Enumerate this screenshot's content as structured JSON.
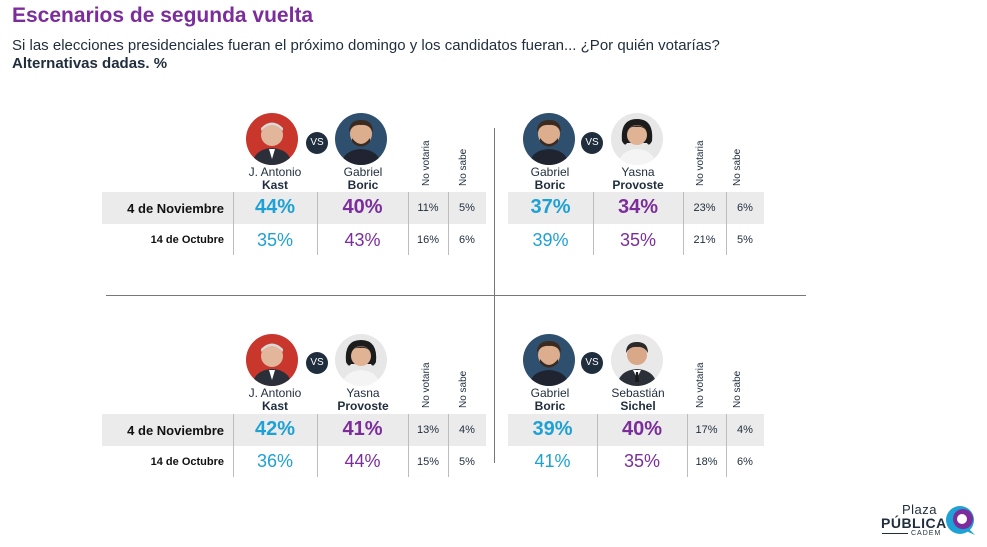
{
  "header": {
    "title": "Escenarios de segunda vuelta",
    "subtitle": "Si las elecciones presidenciales fueran el próximo domingo y los candidatos fueran... ¿Por quién votarías?",
    "subtitle2": "Alternativas dadas. %"
  },
  "labels": {
    "vs": "VS",
    "no_votaria": "No votaria",
    "no_sabe": "No sabe"
  },
  "row_labels": [
    "4 de Noviembre",
    "14 de Octubre"
  ],
  "colors": {
    "candidate_a": "#1ea1d4",
    "candidate_b": "#7b2d9c",
    "band": "#ebebeb",
    "text": "#1f2d3d"
  },
  "chart_data": [
    {
      "type": "table",
      "candidates": [
        {
          "first": "J. Antonio",
          "last": "Kast",
          "photo_icon": "kast-portrait-icon"
        },
        {
          "first": "Gabriel",
          "last": "Boric",
          "photo_icon": "boric-portrait-icon"
        }
      ],
      "columns": [
        "Kast",
        "Boric",
        "No votaria",
        "No sabe"
      ],
      "rows": [
        {
          "label": "4 de Noviembre",
          "values": [
            "44%",
            "40%",
            "11%",
            "5%"
          ]
        },
        {
          "label": "14 de Octubre",
          "values": [
            "35%",
            "43%",
            "16%",
            "6%"
          ]
        }
      ]
    },
    {
      "type": "table",
      "candidates": [
        {
          "first": "Gabriel",
          "last": "Boric",
          "photo_icon": "boric-portrait-icon"
        },
        {
          "first": "Yasna",
          "last": "Provoste",
          "photo_icon": "provoste-portrait-icon"
        }
      ],
      "columns": [
        "Boric",
        "Provoste",
        "No votaria",
        "No sabe"
      ],
      "rows": [
        {
          "label": "4 de Noviembre",
          "values": [
            "37%",
            "34%",
            "23%",
            "6%"
          ]
        },
        {
          "label": "14 de Octubre",
          "values": [
            "39%",
            "35%",
            "21%",
            "5%"
          ]
        }
      ]
    },
    {
      "type": "table",
      "candidates": [
        {
          "first": "J. Antonio",
          "last": "Kast",
          "photo_icon": "kast-portrait-icon"
        },
        {
          "first": "Yasna",
          "last": "Provoste",
          "photo_icon": "provoste-portrait-icon"
        }
      ],
      "columns": [
        "Kast",
        "Provoste",
        "No votaria",
        "No sabe"
      ],
      "rows": [
        {
          "label": "4 de Noviembre",
          "values": [
            "42%",
            "41%",
            "13%",
            "4%"
          ]
        },
        {
          "label": "14 de Octubre",
          "values": [
            "36%",
            "44%",
            "15%",
            "5%"
          ]
        }
      ]
    },
    {
      "type": "table",
      "candidates": [
        {
          "first": "Gabriel",
          "last": "Boric",
          "photo_icon": "boric-portrait-icon"
        },
        {
          "first": "Sebastián",
          "last": "Sichel",
          "photo_icon": "sichel-portrait-icon"
        }
      ],
      "columns": [
        "Boric",
        "Sichel",
        "No votaria",
        "No sabe"
      ],
      "rows": [
        {
          "label": "4 de Noviembre",
          "values": [
            "39%",
            "40%",
            "17%",
            "4%"
          ]
        },
        {
          "label": "14 de Octubre",
          "values": [
            "41%",
            "35%",
            "18%",
            "6%"
          ]
        }
      ]
    }
  ],
  "logo": {
    "line1": "Plaza",
    "line2": "PÚBLICA",
    "line3": "CADEM"
  }
}
